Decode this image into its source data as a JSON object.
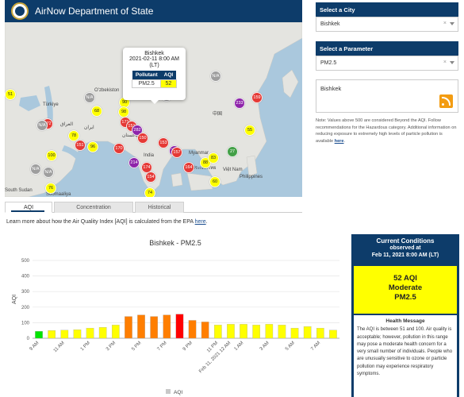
{
  "header": {
    "title": "AirNow Department of State",
    "seal_icon": "us-state-seal-icon"
  },
  "map": {
    "labels": {
      "ozbekiston": "Oʻzbekiston",
      "turkiye": "Türkiye",
      "iraq": "العراق",
      "iran": "ایران",
      "pakistan": "پاکستان",
      "india": "India",
      "myanmar": "Myanmar",
      "thailand": "ประเทศไทย",
      "vietnam": "Việt Nam",
      "philippines": "Philippines",
      "south_sudan": "South Sudan",
      "somaliland": "Soomaaliya",
      "china": "中国",
      "west": "51",
      "mongolia": ""
    },
    "markers": [
      {
        "value": "51",
        "color": "#ffff00"
      },
      {
        "value": "N/A",
        "color": "#9e9e9e"
      },
      {
        "value": "N/A",
        "color": "#9e9e9e"
      },
      {
        "value": "172",
        "color": "#e53935"
      },
      {
        "value": "N/A",
        "color": "#9e9e9e"
      },
      {
        "value": "78",
        "color": "#ffff00"
      },
      {
        "value": "151",
        "color": "#e53935"
      },
      {
        "value": "100",
        "color": "#ffff00"
      },
      {
        "value": "96",
        "color": "#ffff00"
      },
      {
        "value": "N/A",
        "color": "#9e9e9e"
      },
      {
        "value": "N/A",
        "color": "#9e9e9e"
      },
      {
        "value": "76",
        "color": "#ffff00"
      },
      {
        "value": "68",
        "color": "#ffff00"
      },
      {
        "value": "90",
        "color": "#ffff00"
      },
      {
        "value": "98",
        "color": "#ffff00"
      },
      {
        "value": "157",
        "color": "#e53935"
      },
      {
        "value": "171",
        "color": "#e53935"
      },
      {
        "value": "151",
        "color": "#e53935"
      },
      {
        "value": "282",
        "color": "#8e24aa"
      },
      {
        "value": "150",
        "color": "#e53935"
      },
      {
        "value": "170",
        "color": "#e53935"
      },
      {
        "value": "153",
        "color": "#e53935"
      },
      {
        "value": "214",
        "color": "#8e24aa"
      },
      {
        "value": "174",
        "color": "#e53935"
      },
      {
        "value": "154",
        "color": "#e53935"
      },
      {
        "value": "74",
        "color": "#ffff00"
      },
      {
        "value": "228",
        "color": "#8e24aa"
      },
      {
        "value": "157",
        "color": "#e53935"
      },
      {
        "value": "164",
        "color": "#e53935"
      },
      {
        "value": "88",
        "color": "#ffff00"
      },
      {
        "value": "83",
        "color": "#ffff00"
      },
      {
        "value": "60",
        "color": "#ffff00"
      },
      {
        "value": "27",
        "color": "#43a047"
      },
      {
        "value": "55",
        "color": "#ffff00"
      },
      {
        "value": "233",
        "color": "#8e24aa"
      },
      {
        "value": "159",
        "color": "#e53935"
      },
      {
        "value": "N/A",
        "color": "#9e9e9e"
      }
    ]
  },
  "popup": {
    "city": "Bishkek",
    "time": "2021-02-11 8:00 AM",
    "tz": "(LT)",
    "col_pollutant": "Pollutant",
    "col_aqi": "AQI",
    "pollutant": "PM2.5",
    "aqi": "52"
  },
  "panel": {
    "city_head": "Select a City",
    "city_value": "Bishkek",
    "param_head": "Select a Parameter",
    "param_value": "PM2.5",
    "clear": "×",
    "city_box": "Bishkek",
    "rss_icon": "rss-feed-icon",
    "note": "Note: Values above 500 are considered Beyond the AQI. Follow recommendations for the Hazardous category. Additional information on reducing exposure to extremely high levels of particle pollution is available",
    "note_link": "here"
  },
  "tabs": [
    {
      "label": "AQI"
    },
    {
      "label": "Concentration"
    },
    {
      "label": "Historical"
    }
  ],
  "learn": {
    "text": "Learn more about how the Air Quality Index [AQI] is calculated from the EPA",
    "link": "here"
  },
  "chart_data": {
    "type": "bar",
    "title": "Bishkek - PM2.5",
    "ylabel": "AQI",
    "xlabel": "",
    "legend": "AQI",
    "legend_position": "bottom",
    "ylim": [
      0,
      500
    ],
    "yticks": [
      0,
      100,
      200,
      300,
      400,
      500
    ],
    "grid": true,
    "categories": [
      "9 AM",
      "10 AM",
      "11 AM",
      "12 PM",
      "1 PM",
      "2 PM",
      "3 PM",
      "4 PM",
      "5 PM",
      "6 PM",
      "7 PM",
      "8 PM",
      "9 PM",
      "10 PM",
      "11 PM",
      "Feb 11, 2021 12 AM",
      "1 AM",
      "2 AM",
      "3 AM",
      "4 AM",
      "5 AM",
      "6 AM",
      "7 AM",
      "8 AM"
    ],
    "xtick_labels": [
      "9 AM",
      "",
      "11 AM",
      "",
      "1 PM",
      "",
      "3 PM",
      "",
      "5 PM",
      "",
      "7 PM",
      "",
      "9 PM",
      "",
      "11 PM",
      "Feb 11, 2021 12 AM",
      "1 AM",
      "",
      "3 AM",
      "",
      "5 AM",
      "",
      "7 AM",
      ""
    ],
    "values": [
      45,
      50,
      52,
      55,
      65,
      70,
      85,
      140,
      150,
      140,
      150,
      155,
      115,
      105,
      85,
      90,
      90,
      85,
      90,
      85,
      65,
      75,
      65,
      52
    ],
    "colors": [
      "#00e400",
      "#ffff00",
      "#ffff00",
      "#ffff00",
      "#ffff00",
      "#ffff00",
      "#ffff00",
      "#ff7e00",
      "#ff7e00",
      "#ff7e00",
      "#ff7e00",
      "#ff0000",
      "#ff7e00",
      "#ff7e00",
      "#ffff00",
      "#ffff00",
      "#ffff00",
      "#ffff00",
      "#ffff00",
      "#ffff00",
      "#ffff00",
      "#ffff00",
      "#ffff00",
      "#ffff00"
    ]
  },
  "current": {
    "title": "Current Conditions",
    "observed": "observed at",
    "datetime": "Feb 11, 2021 8:00 AM (LT)",
    "aqi_line": "52 AQI",
    "category": "Moderate",
    "pollutant": "PM2.5",
    "aqi_color": "#ffff00",
    "health_title": "Health Message",
    "health_text": "The AQI is between 51 and 100. Air quality is acceptable; however, pollution in this range may pose a moderate health concern for a very small number of individuals. People who are unusually sensitive to ozone or particle pollution may experience respiratory symptoms."
  }
}
